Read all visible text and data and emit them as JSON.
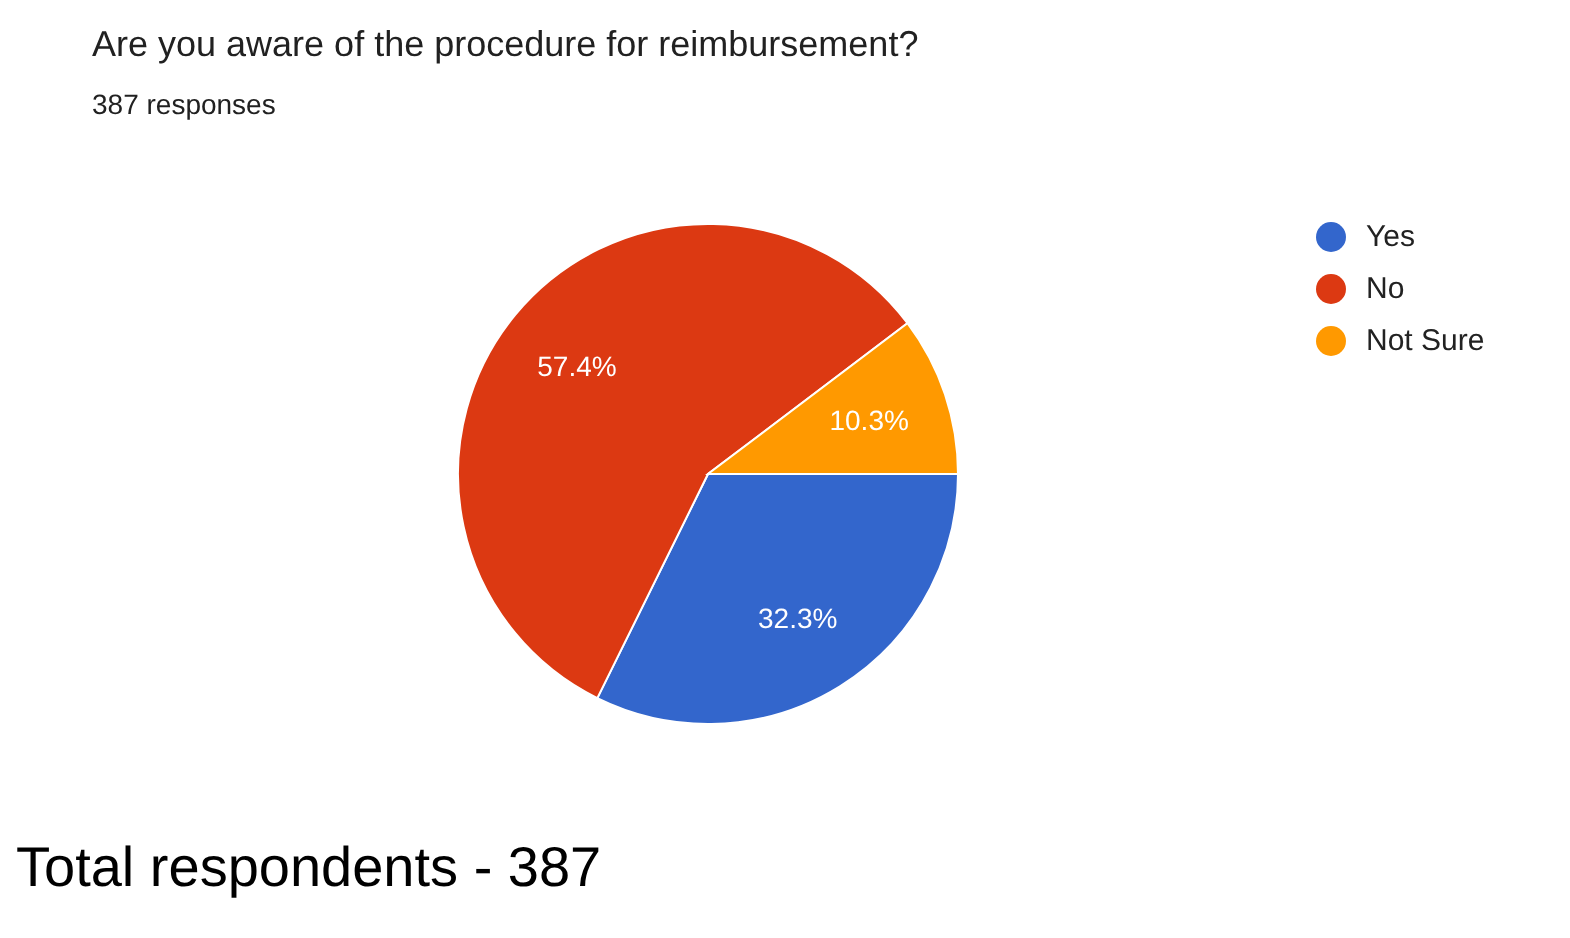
{
  "chart_data": {
    "type": "pie",
    "title": "Are you aware of the procedure for reimbursement?",
    "subtitle": "387 responses",
    "categories": [
      "Yes",
      "No",
      "Not Sure"
    ],
    "values": [
      32.3,
      57.4,
      10.3
    ],
    "colors": [
      "#3366cc",
      "#dc3912",
      "#ff9900"
    ],
    "value_labels": [
      "32.3%",
      "57.4%",
      "10.3%"
    ],
    "legend": "top right",
    "annotations": [
      "Total respondents - 387"
    ]
  }
}
